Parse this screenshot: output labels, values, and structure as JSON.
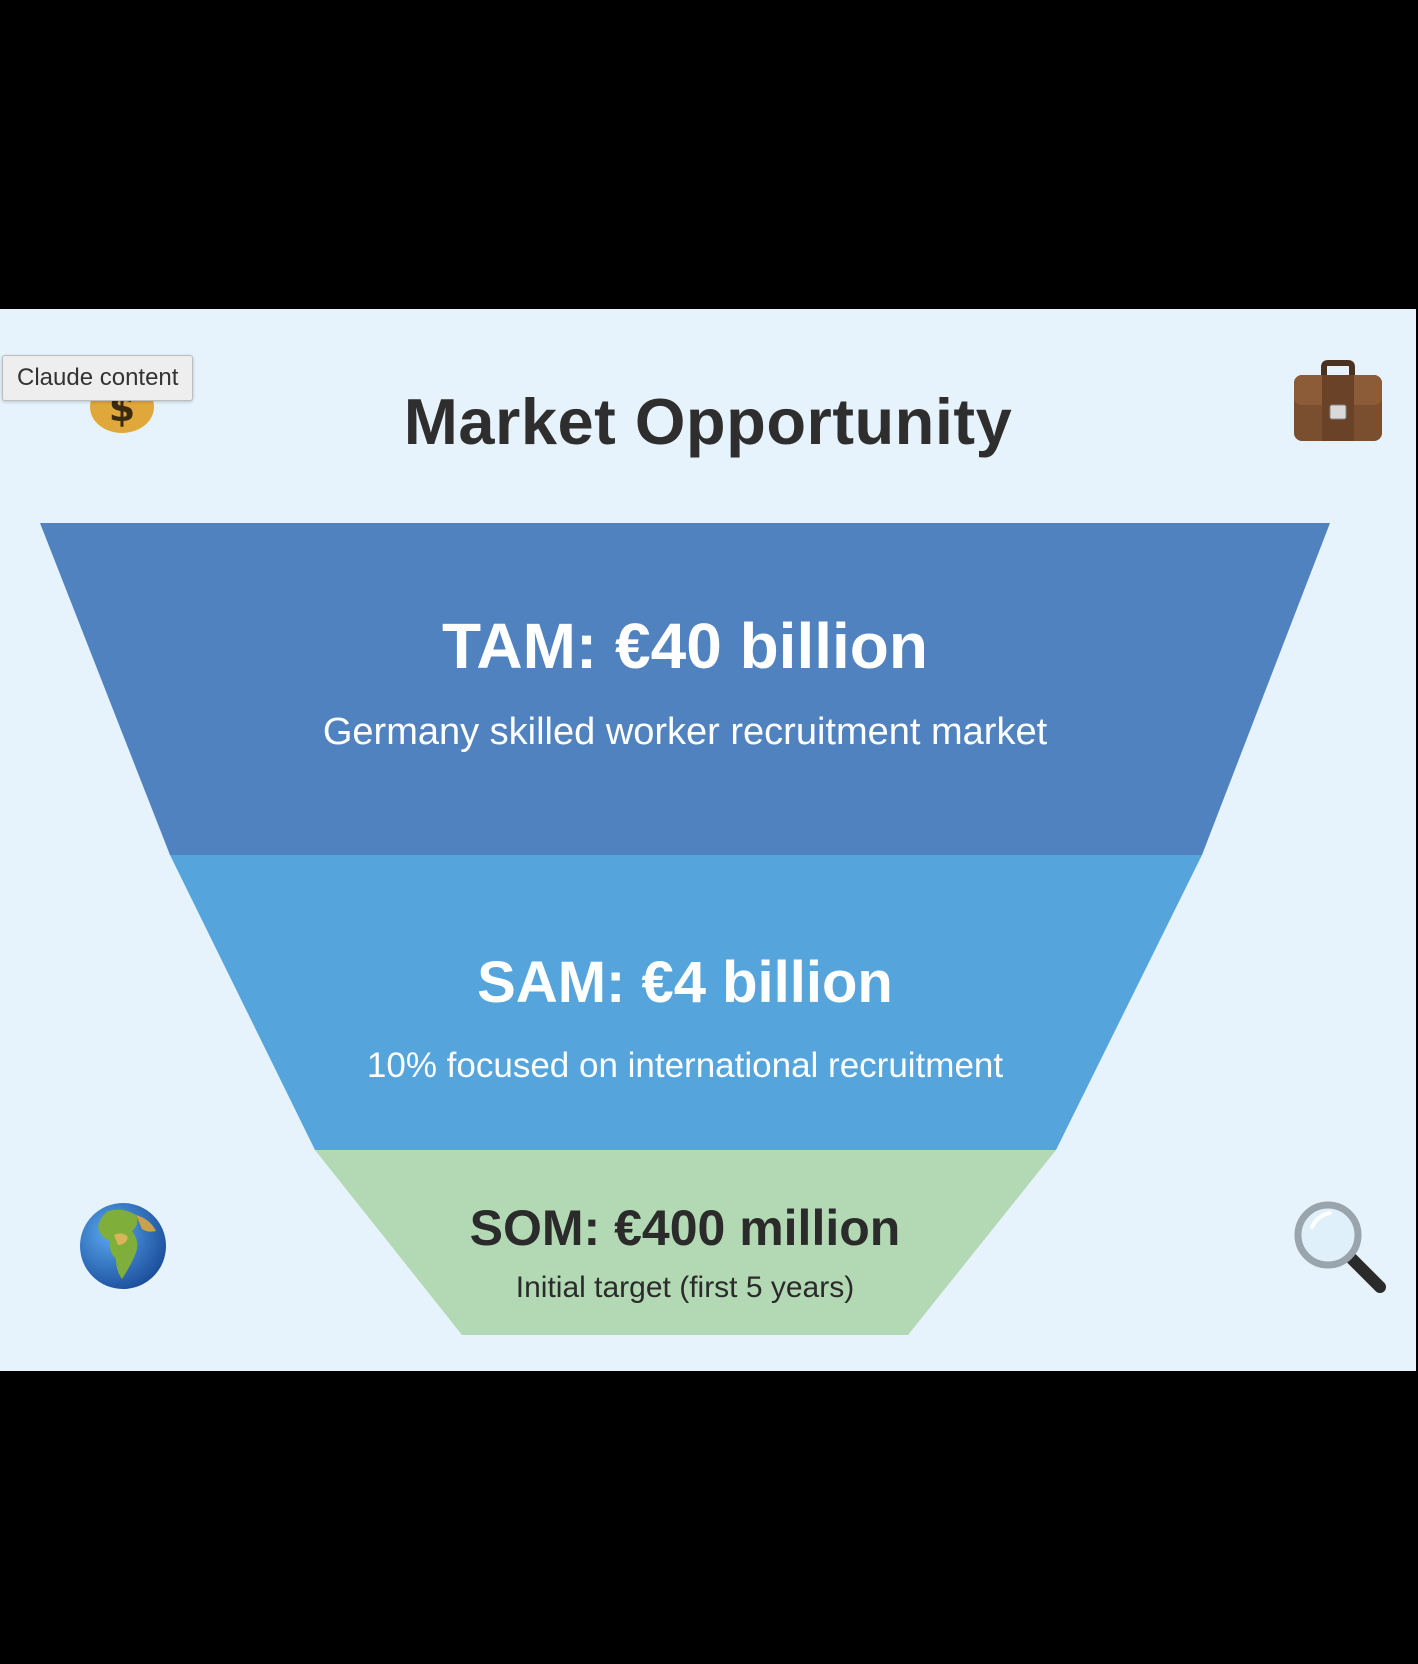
{
  "slide": {
    "title": "Market Opportunity",
    "background_color": "#e6f3fc"
  },
  "tooltip": {
    "text": "Claude content"
  },
  "funnel": {
    "tiers": [
      {
        "heading": "TAM: €40 billion",
        "description": "Germany skilled worker recruitment market",
        "color": "#5182c0"
      },
      {
        "heading": "SAM: €4 billion",
        "description": "10% focused on international recruitment",
        "color": "#55a5dc"
      },
      {
        "heading": "SOM: €400 million",
        "description": "Initial target (first 5 years)",
        "color": "#b3d9b4"
      }
    ]
  },
  "icons": {
    "top_left": "money-bag-icon",
    "top_right": "briefcase-icon",
    "bottom_left": "globe-icon",
    "bottom_right": "magnifying-glass-icon"
  }
}
